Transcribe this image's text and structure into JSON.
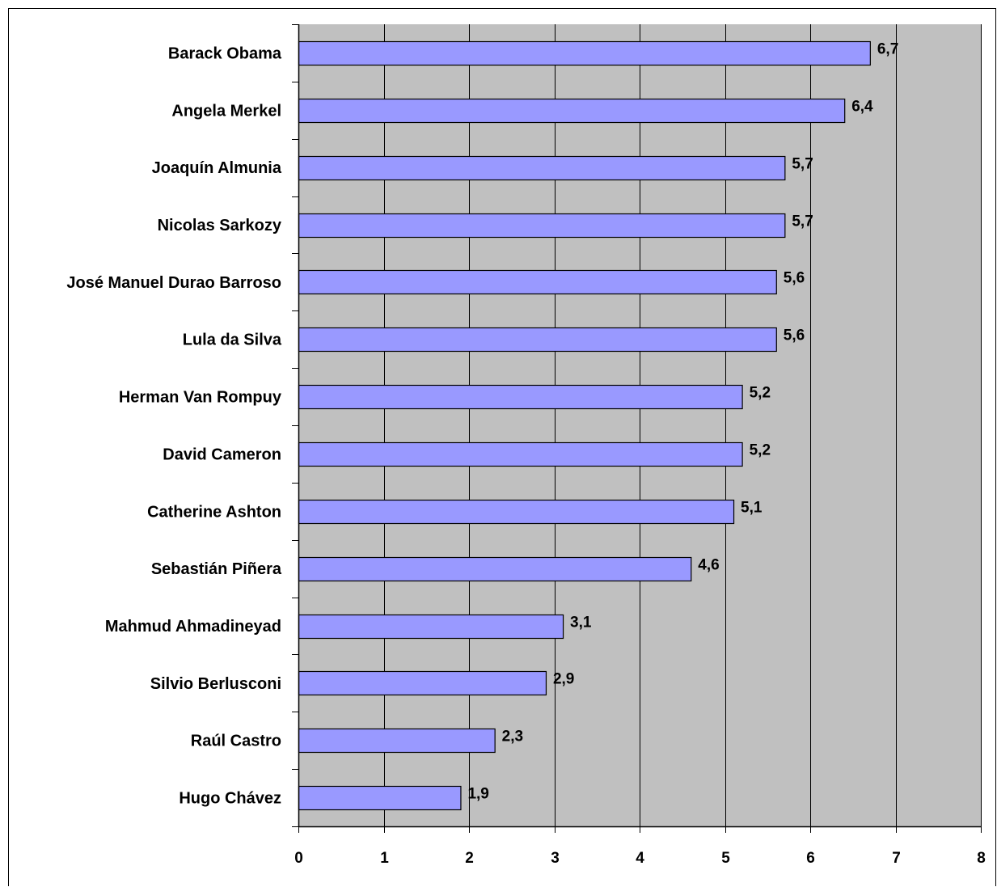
{
  "chart_data": {
    "type": "bar",
    "orientation": "horizontal",
    "categories": [
      "Barack Obama",
      "Angela Merkel",
      "Joaquín Almunia",
      "Nicolas Sarkozy",
      "José Manuel Durao Barroso",
      "Lula da Silva",
      "Herman Van Rompuy",
      "David Cameron",
      "Catherine Ashton",
      "Sebastián Piñera",
      "Mahmud Ahmadineyad",
      "Silvio Berlusconi",
      "Raúl Castro",
      "Hugo Chávez"
    ],
    "values": [
      6.7,
      6.4,
      5.7,
      5.7,
      5.6,
      5.6,
      5.2,
      5.2,
      5.1,
      4.6,
      3.1,
      2.9,
      2.3,
      1.9
    ],
    "value_labels": [
      "6,7",
      "6,4",
      "5,7",
      "5,7",
      "5,6",
      "5,6",
      "5,2",
      "5,2",
      "5,1",
      "4,6",
      "3,1",
      "2,9",
      "2,3",
      "1,9"
    ],
    "title": "",
    "xlabel": "",
    "ylabel": "",
    "xlim": [
      0,
      8
    ],
    "x_ticks": [
      "0",
      "1",
      "2",
      "3",
      "4",
      "5",
      "6",
      "7",
      "8"
    ],
    "grid": "vertical",
    "legend": "none",
    "colors": {
      "bar_fill": "#9999ff",
      "bar_stroke": "#000000",
      "plot_background": "#c0c0c0",
      "gridline": "#000000"
    }
  }
}
